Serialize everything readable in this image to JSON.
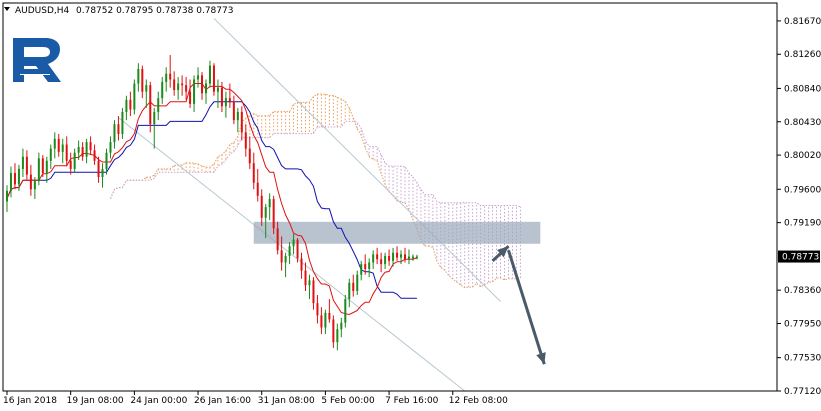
{
  "header": {
    "symbol": "AUDUSD,H4",
    "ohlc": "0.78752 0.78795 0.78738 0.78773"
  },
  "colors": {
    "bull": "#1a8a1a",
    "bear": "#e01010",
    "kijun": "#1010b0",
    "tenkan": "#e01010",
    "cloud_bull": "#e9a060",
    "cloud_bear": "#c9a0d0",
    "channel": "#b8c8d0",
    "zone": "#9aaabb",
    "arrow": "#4a5a68",
    "logo": "#1a5ba8",
    "grid": "#d0d0d0",
    "price_label_bg": "#000000"
  },
  "chart_data": {
    "type": "candlestick",
    "symbol": "AUDUSD",
    "timeframe": "H4",
    "y_ticks": [
      "0.81670",
      "0.81260",
      "0.80840",
      "0.80430",
      "0.80020",
      "0.79600",
      "0.79190",
      "0.78773",
      "0.78360",
      "0.77950",
      "0.77530",
      "0.77120"
    ],
    "y_tick_values": [
      0.8167,
      0.8126,
      0.8084,
      0.8043,
      0.8002,
      0.796,
      0.7919,
      0.78773,
      0.7836,
      0.7795,
      0.7753,
      0.7712
    ],
    "current_price": "0.78773",
    "x_ticks": [
      "16 Jan 2018",
      "19 Jan 08:00",
      "24 Jan 00:00",
      "26 Jan 16:00",
      "31 Jan 08:00",
      "5 Feb 00:00",
      "7 Feb 16:00",
      "12 Feb 08:00"
    ],
    "x_tick_bars": [
      0,
      16,
      32,
      48,
      64,
      80,
      96,
      112
    ],
    "ylim": [
      0.7712,
      0.8189
    ],
    "candles": [
      [
        0.7945,
        0.7965,
        0.7932,
        0.7958
      ],
      [
        0.7958,
        0.7988,
        0.795,
        0.798
      ],
      [
        0.798,
        0.7992,
        0.796,
        0.7966
      ],
      [
        0.7966,
        0.799,
        0.7958,
        0.7985
      ],
      [
        0.7985,
        0.801,
        0.7975,
        0.8
      ],
      [
        0.8,
        0.8008,
        0.7972,
        0.7978
      ],
      [
        0.7978,
        0.799,
        0.7952,
        0.796
      ],
      [
        0.796,
        0.7975,
        0.7948,
        0.797
      ],
      [
        0.797,
        0.8005,
        0.7965,
        0.7998
      ],
      [
        0.7998,
        0.8002,
        0.7975,
        0.798
      ],
      [
        0.798,
        0.8,
        0.7968,
        0.7995
      ],
      [
        0.7995,
        0.8015,
        0.7985,
        0.801
      ],
      [
        0.801,
        0.803,
        0.7998,
        0.8022
      ],
      [
        0.8022,
        0.8028,
        0.8,
        0.8006
      ],
      [
        0.8006,
        0.8022,
        0.7992,
        0.8015
      ],
      [
        0.8015,
        0.8025,
        0.7988,
        0.7995
      ],
      [
        0.7995,
        0.8005,
        0.7978,
        0.7985
      ],
      [
        0.7985,
        0.801,
        0.798,
        0.8005
      ],
      [
        0.8005,
        0.802,
        0.7996,
        0.8012
      ],
      [
        0.8012,
        0.8018,
        0.7995,
        0.8
      ],
      [
        0.8,
        0.8022,
        0.7992,
        0.8018
      ],
      [
        0.8018,
        0.8025,
        0.8002,
        0.8008
      ],
      [
        0.8008,
        0.8015,
        0.799,
        0.7995
      ],
      [
        0.7995,
        0.8,
        0.7968,
        0.7975
      ],
      [
        0.7975,
        0.7992,
        0.7962,
        0.7985
      ],
      [
        0.7985,
        0.801,
        0.7978,
        0.8005
      ],
      [
        0.8005,
        0.8025,
        0.7998,
        0.8018
      ],
      [
        0.8018,
        0.8045,
        0.801,
        0.804
      ],
      [
        0.804,
        0.805,
        0.802,
        0.8028
      ],
      [
        0.8028,
        0.806,
        0.8022,
        0.8055
      ],
      [
        0.8055,
        0.8075,
        0.8045,
        0.807
      ],
      [
        0.807,
        0.808,
        0.805,
        0.8058
      ],
      [
        0.8058,
        0.8095,
        0.8052,
        0.809
      ],
      [
        0.809,
        0.8115,
        0.808,
        0.8108
      ],
      [
        0.8108,
        0.8112,
        0.8072,
        0.808
      ],
      [
        0.808,
        0.8095,
        0.806,
        0.8088
      ],
      [
        0.8088,
        0.8092,
        0.803,
        0.804
      ],
      [
        0.804,
        0.806,
        0.801,
        0.8055
      ],
      [
        0.8055,
        0.808,
        0.8045,
        0.8072
      ],
      [
        0.8072,
        0.8098,
        0.8065,
        0.8092
      ],
      [
        0.8092,
        0.811,
        0.808,
        0.8102
      ],
      [
        0.8102,
        0.8125,
        0.8085,
        0.8095
      ],
      [
        0.8095,
        0.8105,
        0.8075,
        0.8082
      ],
      [
        0.8082,
        0.8098,
        0.807,
        0.809
      ],
      [
        0.809,
        0.81,
        0.8075,
        0.8088
      ],
      [
        0.8088,
        0.8098,
        0.807,
        0.808
      ],
      [
        0.808,
        0.8095,
        0.806,
        0.8065
      ],
      [
        0.8065,
        0.81,
        0.8055,
        0.8095
      ],
      [
        0.8095,
        0.811,
        0.8085,
        0.81
      ],
      [
        0.81,
        0.8104,
        0.807,
        0.8078
      ],
      [
        0.8078,
        0.8095,
        0.8065,
        0.809
      ],
      [
        0.809,
        0.8118,
        0.8085,
        0.8112
      ],
      [
        0.8112,
        0.8115,
        0.8075,
        0.808
      ],
      [
        0.808,
        0.8095,
        0.806,
        0.8085
      ],
      [
        0.8085,
        0.8092,
        0.8055,
        0.8062
      ],
      [
        0.8062,
        0.808,
        0.8048,
        0.8072
      ],
      [
        0.8072,
        0.809,
        0.806,
        0.8068
      ],
      [
        0.8068,
        0.8075,
        0.804,
        0.8045
      ],
      [
        0.8045,
        0.806,
        0.803,
        0.8055
      ],
      [
        0.8055,
        0.8062,
        0.802,
        0.803
      ],
      [
        0.803,
        0.804,
        0.8,
        0.801
      ],
      [
        0.801,
        0.8025,
        0.7985,
        0.7992
      ],
      [
        0.7992,
        0.8005,
        0.796,
        0.7968
      ],
      [
        0.7968,
        0.7985,
        0.7945,
        0.7952
      ],
      [
        0.7952,
        0.796,
        0.7915,
        0.7925
      ],
      [
        0.7925,
        0.7942,
        0.79,
        0.7938
      ],
      [
        0.7938,
        0.7955,
        0.7922,
        0.7948
      ],
      [
        0.7948,
        0.7952,
        0.7905,
        0.7912
      ],
      [
        0.7912,
        0.792,
        0.788,
        0.7885
      ],
      [
        0.7885,
        0.7902,
        0.786,
        0.787
      ],
      [
        0.787,
        0.7882,
        0.7852,
        0.7878
      ],
      [
        0.7878,
        0.7895,
        0.7868,
        0.789
      ],
      [
        0.789,
        0.7905,
        0.788,
        0.7898
      ],
      [
        0.7898,
        0.79,
        0.787,
        0.7875
      ],
      [
        0.7875,
        0.7882,
        0.785,
        0.786
      ],
      [
        0.786,
        0.787,
        0.7835,
        0.7842
      ],
      [
        0.7842,
        0.7855,
        0.7825,
        0.7848
      ],
      [
        0.7848,
        0.7852,
        0.7812,
        0.782
      ],
      [
        0.782,
        0.783,
        0.7795,
        0.7805
      ],
      [
        0.7805,
        0.7815,
        0.7782,
        0.779
      ],
      [
        0.779,
        0.7812,
        0.7782,
        0.7808
      ],
      [
        0.7808,
        0.7825,
        0.7796,
        0.78
      ],
      [
        0.78,
        0.7805,
        0.7765,
        0.7772
      ],
      [
        0.7772,
        0.7795,
        0.7762,
        0.7788
      ],
      [
        0.7788,
        0.7802,
        0.7778,
        0.7796
      ],
      [
        0.7796,
        0.783,
        0.779,
        0.7825
      ],
      [
        0.7825,
        0.785,
        0.7815,
        0.7845
      ],
      [
        0.7845,
        0.7855,
        0.7828,
        0.7835
      ],
      [
        0.7835,
        0.786,
        0.783,
        0.7855
      ],
      [
        0.7855,
        0.7872,
        0.7848,
        0.7868
      ],
      [
        0.7868,
        0.788,
        0.7855,
        0.7862
      ],
      [
        0.7862,
        0.7875,
        0.7852,
        0.787
      ],
      [
        0.787,
        0.7885,
        0.7862,
        0.788
      ],
      [
        0.788,
        0.7888,
        0.7868,
        0.7874
      ],
      [
        0.7874,
        0.7882,
        0.7858,
        0.7868
      ],
      [
        0.7868,
        0.7882,
        0.7862,
        0.7878
      ],
      [
        0.7878,
        0.7886,
        0.7866,
        0.7872
      ],
      [
        0.7872,
        0.7888,
        0.7865,
        0.7882
      ],
      [
        0.7882,
        0.789,
        0.7872,
        0.7876
      ],
      [
        0.7876,
        0.7885,
        0.7868,
        0.788
      ],
      [
        0.788,
        0.7888,
        0.787,
        0.7874
      ],
      [
        0.7874,
        0.7886,
        0.7868,
        0.78773
      ],
      [
        0.7875,
        0.788,
        0.7872,
        0.78773
      ],
      [
        0.78752,
        0.78795,
        0.78738,
        0.78773
      ]
    ]
  }
}
